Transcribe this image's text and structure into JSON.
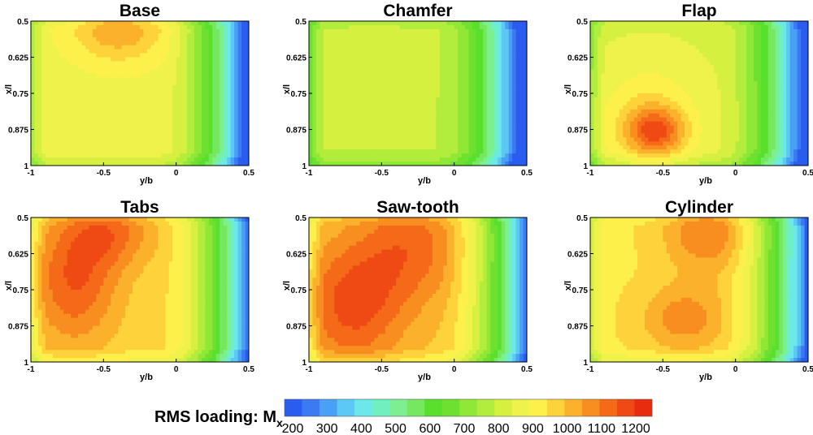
{
  "chart_data": {
    "type": "heatmap",
    "xlabel": "y/b",
    "ylabel": "x/l",
    "x_ticks": [
      "-1",
      "-0.5",
      "0",
      "0.5"
    ],
    "y_ticks": [
      "0.5",
      "0.625",
      "0.75",
      "0.875",
      "1"
    ],
    "xlim": [
      -1,
      0.5
    ],
    "ylim": [
      0.5,
      1
    ],
    "y_reversed": true,
    "grid": false,
    "panels": [
      {
        "title": "Base",
        "peaks": [
          [
            -0.4,
            0.52,
            1050,
            0.32,
            0.12
          ],
          [
            -0.5,
            0.82,
            880,
            0.45,
            0.25
          ]
        ],
        "base": 880
      },
      {
        "title": "Chamfer",
        "peaks": [
          [
            -0.55,
            0.62,
            820,
            0.35,
            0.2
          ],
          [
            -0.4,
            0.9,
            800,
            0.45,
            0.2
          ]
        ],
        "base": 800
      },
      {
        "title": "Flap",
        "peaks": [
          [
            -0.55,
            0.88,
            1080,
            0.2,
            0.08
          ],
          [
            -0.6,
            0.85,
            960,
            0.35,
            0.2
          ]
        ],
        "base": 840
      },
      {
        "title": "Tabs",
        "peaks": [
          [
            -0.7,
            0.72,
            1150,
            0.3,
            0.22
          ],
          [
            -0.45,
            0.55,
            1100,
            0.3,
            0.12
          ]
        ],
        "base": 960
      },
      {
        "title": "Saw-tooth",
        "peaks": [
          [
            -0.7,
            0.8,
            1170,
            0.35,
            0.22
          ],
          [
            -0.3,
            0.6,
            1120,
            0.35,
            0.2
          ]
        ],
        "base": 980
      },
      {
        "title": "Cylinder",
        "peaks": [
          [
            -0.2,
            0.55,
            1100,
            0.3,
            0.14
          ],
          [
            -0.35,
            0.85,
            1080,
            0.3,
            0.12
          ]
        ],
        "base": 940
      }
    ],
    "colorbar": {
      "title": "RMS loading: M",
      "subscript": "x",
      "min": 200,
      "max": 1200,
      "step": 50,
      "tick_labels": [
        "200",
        "300",
        "400",
        "500",
        "600",
        "700",
        "800",
        "900",
        "1000",
        "1100",
        "1200"
      ],
      "colors": [
        "#2a5cf0",
        "#3b7af2",
        "#4aa0f5",
        "#5cc8f5",
        "#6ce8ea",
        "#70f0c0",
        "#7cf090",
        "#76e860",
        "#58e02c",
        "#6ee030",
        "#90e836",
        "#b2ec3c",
        "#d6f040",
        "#eef24a",
        "#fef04a",
        "#fdd23a",
        "#fbb12c",
        "#f88e20",
        "#f46a18",
        "#ef4a14",
        "#e82c10"
      ]
    }
  }
}
